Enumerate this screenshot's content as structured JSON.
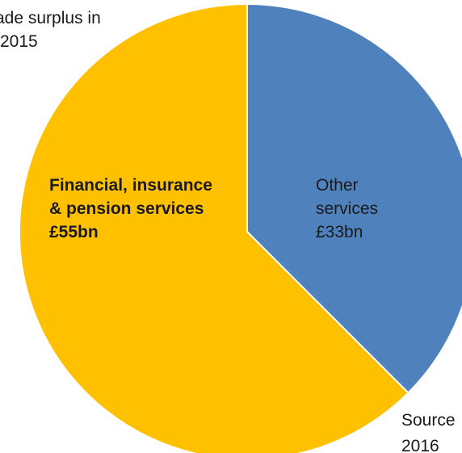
{
  "chart_data": {
    "type": "pie",
    "title_lines": [
      "ade surplus in",
      "2015"
    ],
    "slices": [
      {
        "label_lines": [
          "Other",
          "services",
          "£33bn"
        ],
        "value": 33,
        "color": "#4f81bd",
        "label_bold": false
      },
      {
        "label_lines": [
          "Financial, insurance",
          "& pension services",
          "£55bn"
        ],
        "value": 55,
        "color": "#ffc000",
        "label_bold": true
      }
    ],
    "start_angle_deg": 0,
    "direction": "clockwise",
    "legend": "none",
    "source_lines": [
      "Source",
      "2016"
    ]
  }
}
